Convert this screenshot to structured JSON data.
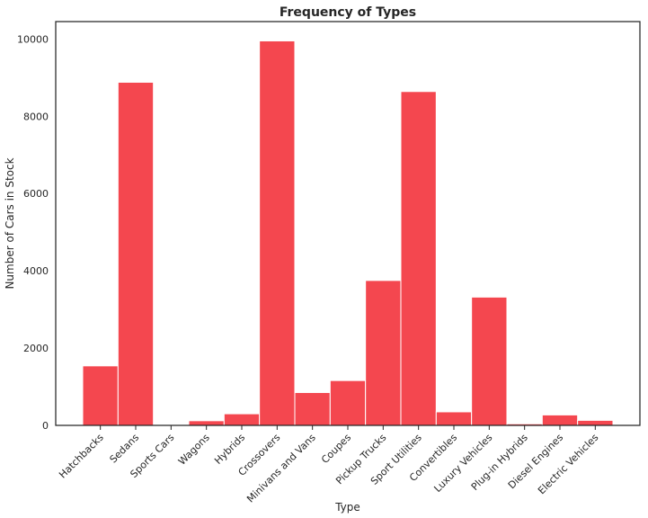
{
  "chart_data": {
    "type": "bar",
    "title": "Frequency of Types",
    "xlabel": "Type",
    "ylabel": "Number of Cars in Stock",
    "categories": [
      "Hatchbacks",
      "Sedans",
      "Sports Cars",
      "Wagons",
      "Hybrids",
      "Crossovers",
      "Minivans and Vans",
      "Coupes",
      "Pickup Trucks",
      "Sport Utilities",
      "Convertibles",
      "Luxury Vehicles",
      "Plug-in Hybrids",
      "Diesel Engines",
      "Electric Vehicles"
    ],
    "values": [
      1540,
      8880,
      0,
      120,
      300,
      9950,
      850,
      1160,
      3750,
      8640,
      350,
      3320,
      40,
      270,
      130
    ],
    "ylim": [
      0,
      10450
    ],
    "yticks": [
      0,
      2000,
      4000,
      6000,
      8000,
      10000
    ],
    "grid": false,
    "legend": "none",
    "colors": {
      "bar": "#f4474f",
      "bar_edge": "#ffffff",
      "axes": "#262626"
    }
  }
}
